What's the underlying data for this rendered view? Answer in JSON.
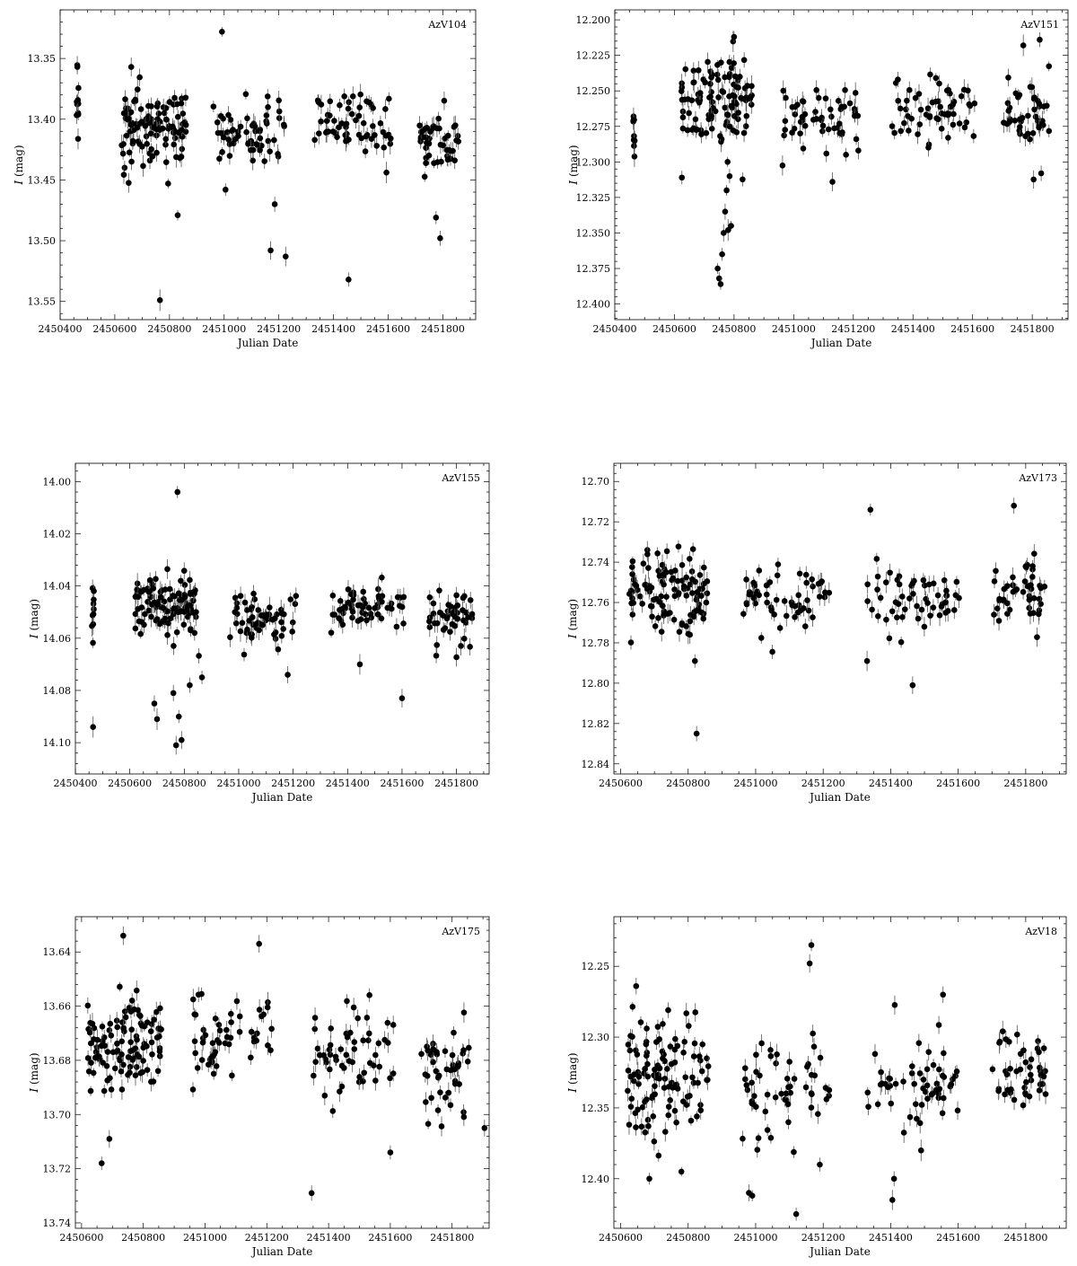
{
  "chart_data": [
    {
      "type": "scatter",
      "label": "AzV104",
      "xlabel": "Julian Date",
      "ylabel": "I (mag)",
      "xlim": [
        2450400,
        2451920
      ],
      "ylim": [
        13.565,
        13.31
      ],
      "y_inverted": true,
      "xticks": [
        2450400,
        2450600,
        2450800,
        2451000,
        2451200,
        2451400,
        2451600,
        2451800
      ],
      "yticks": [
        13.35,
        13.4,
        13.45,
        13.5,
        13.55
      ],
      "ytick_labels": [
        "13.35",
        "13.40",
        "13.45",
        "13.50",
        "13.55"
      ],
      "seasons": [
        {
          "start": 2450460,
          "end": 2450468,
          "n": 10,
          "mean": 13.395,
          "spread": 0.022
        },
        {
          "start": 2450625,
          "end": 2450860,
          "n": 110,
          "mean": 13.405,
          "spread": 0.018
        },
        {
          "start": 2450960,
          "end": 2451220,
          "n": 60,
          "mean": 13.41,
          "spread": 0.018
        },
        {
          "start": 2451330,
          "end": 2451610,
          "n": 60,
          "mean": 13.405,
          "spread": 0.016
        },
        {
          "start": 2451700,
          "end": 2451860,
          "n": 45,
          "mean": 13.415,
          "spread": 0.017
        }
      ],
      "outliers": [
        {
          "x": 2450463,
          "y": 13.357
        },
        {
          "x": 2450660,
          "y": 13.357
        },
        {
          "x": 2450765,
          "y": 13.549
        },
        {
          "x": 2450795,
          "y": 13.453
        },
        {
          "x": 2450830,
          "y": 13.479
        },
        {
          "x": 2450992,
          "y": 13.328
        },
        {
          "x": 2451005,
          "y": 13.458
        },
        {
          "x": 2451170,
          "y": 13.508
        },
        {
          "x": 2451185,
          "y": 13.47
        },
        {
          "x": 2451225,
          "y": 13.513
        },
        {
          "x": 2451455,
          "y": 13.532
        },
        {
          "x": 2451775,
          "y": 13.481
        },
        {
          "x": 2451790,
          "y": 13.498
        }
      ]
    },
    {
      "type": "scatter",
      "label": "AzV151",
      "xlabel": "Julian Date",
      "ylabel": "I (mag)",
      "xlim": [
        2450400,
        2451920
      ],
      "ylim": [
        12.411,
        12.193
      ],
      "y_inverted": true,
      "xticks": [
        2450400,
        2450600,
        2450800,
        2451000,
        2451200,
        2451400,
        2451600,
        2451800
      ],
      "yticks": [
        12.2,
        12.225,
        12.25,
        12.275,
        12.3,
        12.325,
        12.35,
        12.375,
        12.4
      ],
      "ytick_labels": [
        "12.200",
        "12.225",
        "12.250",
        "12.275",
        "12.300",
        "12.325",
        "12.350",
        "12.375",
        "12.400"
      ],
      "seasons": [
        {
          "start": 2450460,
          "end": 2450468,
          "n": 10,
          "mean": 12.278,
          "spread": 0.014
        },
        {
          "start": 2450620,
          "end": 2450860,
          "n": 110,
          "mean": 12.26,
          "spread": 0.02
        },
        {
          "start": 2450960,
          "end": 2451220,
          "n": 55,
          "mean": 12.268,
          "spread": 0.016
        },
        {
          "start": 2451330,
          "end": 2451610,
          "n": 60,
          "mean": 12.262,
          "spread": 0.016
        },
        {
          "start": 2451700,
          "end": 2451860,
          "n": 45,
          "mean": 12.27,
          "spread": 0.016
        }
      ],
      "outliers": [
        {
          "x": 2450625,
          "y": 12.311
        },
        {
          "x": 2450745,
          "y": 12.375
        },
        {
          "x": 2450750,
          "y": 12.382
        },
        {
          "x": 2450755,
          "y": 12.386
        },
        {
          "x": 2450760,
          "y": 12.365
        },
        {
          "x": 2450765,
          "y": 12.35
        },
        {
          "x": 2450770,
          "y": 12.335
        },
        {
          "x": 2450775,
          "y": 12.32
        },
        {
          "x": 2450780,
          "y": 12.348
        },
        {
          "x": 2450785,
          "y": 12.31
        },
        {
          "x": 2450790,
          "y": 12.345
        },
        {
          "x": 2450800,
          "y": 12.212
        },
        {
          "x": 2451130,
          "y": 12.314
        },
        {
          "x": 2451770,
          "y": 12.218
        },
        {
          "x": 2451825,
          "y": 12.214
        },
        {
          "x": 2451830,
          "y": 12.308
        }
      ]
    },
    {
      "type": "scatter",
      "label": "AzV155",
      "xlabel": "Julian Date",
      "ylabel": "I (mag)",
      "xlim": [
        2450400,
        2451920
      ],
      "ylim": [
        14.112,
        13.993
      ],
      "y_inverted": true,
      "xticks": [
        2450400,
        2450600,
        2450800,
        2451000,
        2451200,
        2451400,
        2451600,
        2451800
      ],
      "yticks": [
        14.0,
        14.02,
        14.04,
        14.06,
        14.08,
        14.1
      ],
      "ytick_labels": [
        "14.00",
        "14.02",
        "14.04",
        "14.06",
        "14.08",
        "14.10"
      ],
      "seasons": [
        {
          "start": 2450460,
          "end": 2450468,
          "n": 10,
          "mean": 14.05,
          "spread": 0.007
        },
        {
          "start": 2450620,
          "end": 2450860,
          "n": 110,
          "mean": 14.047,
          "spread": 0.007
        },
        {
          "start": 2450960,
          "end": 2451220,
          "n": 60,
          "mean": 14.052,
          "spread": 0.006
        },
        {
          "start": 2451330,
          "end": 2451610,
          "n": 60,
          "mean": 14.048,
          "spread": 0.006
        },
        {
          "start": 2451700,
          "end": 2451860,
          "n": 45,
          "mean": 14.052,
          "spread": 0.006
        }
      ],
      "outliers": [
        {
          "x": 2450465,
          "y": 14.094
        },
        {
          "x": 2450690,
          "y": 14.085
        },
        {
          "x": 2450700,
          "y": 14.091
        },
        {
          "x": 2450760,
          "y": 14.081
        },
        {
          "x": 2450770,
          "y": 14.101
        },
        {
          "x": 2450775,
          "y": 14.004
        },
        {
          "x": 2450780,
          "y": 14.09
        },
        {
          "x": 2450790,
          "y": 14.099
        },
        {
          "x": 2450820,
          "y": 14.078
        },
        {
          "x": 2450865,
          "y": 14.075
        },
        {
          "x": 2451180,
          "y": 14.074
        },
        {
          "x": 2451445,
          "y": 14.07
        },
        {
          "x": 2451600,
          "y": 14.083
        }
      ]
    },
    {
      "type": "scatter",
      "label": "AzV173",
      "xlabel": "Julian Date",
      "ylabel": "I (mag)",
      "xlim": [
        2450580,
        2451920
      ],
      "ylim": [
        12.845,
        12.691
      ],
      "y_inverted": true,
      "xticks": [
        2450600,
        2450800,
        2451000,
        2451200,
        2451400,
        2451600,
        2451800
      ],
      "yticks": [
        12.7,
        12.72,
        12.74,
        12.76,
        12.78,
        12.8,
        12.82,
        12.84
      ],
      "ytick_labels": [
        "12.70",
        "12.72",
        "12.74",
        "12.76",
        "12.78",
        "12.80",
        "12.82",
        "12.84"
      ],
      "seasons": [
        {
          "start": 2450620,
          "end": 2450860,
          "n": 110,
          "mean": 12.755,
          "spread": 0.012
        },
        {
          "start": 2450960,
          "end": 2451220,
          "n": 55,
          "mean": 12.758,
          "spread": 0.01
        },
        {
          "start": 2451330,
          "end": 2451610,
          "n": 55,
          "mean": 12.758,
          "spread": 0.011
        },
        {
          "start": 2451700,
          "end": 2451860,
          "n": 45,
          "mean": 12.755,
          "spread": 0.01
        }
      ],
      "outliers": [
        {
          "x": 2450825,
          "y": 12.825
        },
        {
          "x": 2450820,
          "y": 12.789
        },
        {
          "x": 2451330,
          "y": 12.789
        },
        {
          "x": 2451340,
          "y": 12.714
        },
        {
          "x": 2451465,
          "y": 12.801
        },
        {
          "x": 2451765,
          "y": 12.712
        }
      ]
    },
    {
      "type": "scatter",
      "label": "AzV175",
      "xlabel": "Julian Date",
      "ylabel": "I (mag)",
      "xlim": [
        2450580,
        2451920
      ],
      "ylim": [
        13.742,
        13.627
      ],
      "y_inverted": true,
      "xticks": [
        2450600,
        2450800,
        2451000,
        2451200,
        2451400,
        2451600,
        2451800
      ],
      "yticks": [
        13.64,
        13.66,
        13.68,
        13.7,
        13.72,
        13.74
      ],
      "ytick_labels": [
        "13.64",
        "13.66",
        "13.68",
        "13.70",
        "13.72",
        "13.74"
      ],
      "seasons": [
        {
          "start": 2450620,
          "end": 2450860,
          "n": 110,
          "mean": 13.676,
          "spread": 0.01
        },
        {
          "start": 2450960,
          "end": 2451220,
          "n": 55,
          "mean": 13.672,
          "spread": 0.01
        },
        {
          "start": 2451330,
          "end": 2451610,
          "n": 55,
          "mean": 13.677,
          "spread": 0.01
        },
        {
          "start": 2451700,
          "end": 2451860,
          "n": 45,
          "mean": 13.683,
          "spread": 0.01
        }
      ],
      "outliers": [
        {
          "x": 2450665,
          "y": 13.718
        },
        {
          "x": 2450690,
          "y": 13.709
        },
        {
          "x": 2450735,
          "y": 13.634
        },
        {
          "x": 2451175,
          "y": 13.637
        },
        {
          "x": 2451345,
          "y": 13.729
        },
        {
          "x": 2451600,
          "y": 13.714
        },
        {
          "x": 2451905,
          "y": 13.705
        }
      ]
    },
    {
      "type": "scatter",
      "label": "AzV18",
      "xlabel": "Julian Date",
      "ylabel": "I (mag)",
      "xlim": [
        2450580,
        2451920
      ],
      "ylim": [
        12.435,
        12.215
      ],
      "y_inverted": true,
      "xticks": [
        2450600,
        2450800,
        2451000,
        2451200,
        2451400,
        2451600,
        2451800
      ],
      "yticks": [
        12.25,
        12.3,
        12.35,
        12.4
      ],
      "ytick_labels": [
        "12.25",
        "12.30",
        "12.35",
        "12.40"
      ],
      "seasons": [
        {
          "start": 2450620,
          "end": 2450860,
          "n": 110,
          "mean": 12.33,
          "spread": 0.025
        },
        {
          "start": 2450960,
          "end": 2451220,
          "n": 55,
          "mean": 12.34,
          "spread": 0.025
        },
        {
          "start": 2451330,
          "end": 2451610,
          "n": 55,
          "mean": 12.335,
          "spread": 0.02
        },
        {
          "start": 2451700,
          "end": 2451860,
          "n": 45,
          "mean": 12.325,
          "spread": 0.02
        }
      ],
      "outliers": [
        {
          "x": 2450685,
          "y": 12.4
        },
        {
          "x": 2450780,
          "y": 12.395
        },
        {
          "x": 2450980,
          "y": 12.41
        },
        {
          "x": 2450990,
          "y": 12.412
        },
        {
          "x": 2451120,
          "y": 12.425
        },
        {
          "x": 2451165,
          "y": 12.235
        },
        {
          "x": 2451160,
          "y": 12.248
        },
        {
          "x": 2451190,
          "y": 12.39
        },
        {
          "x": 2451405,
          "y": 12.415
        },
        {
          "x": 2451410,
          "y": 12.4
        },
        {
          "x": 2451490,
          "y": 12.38
        },
        {
          "x": 2451555,
          "y": 12.27
        }
      ]
    }
  ]
}
